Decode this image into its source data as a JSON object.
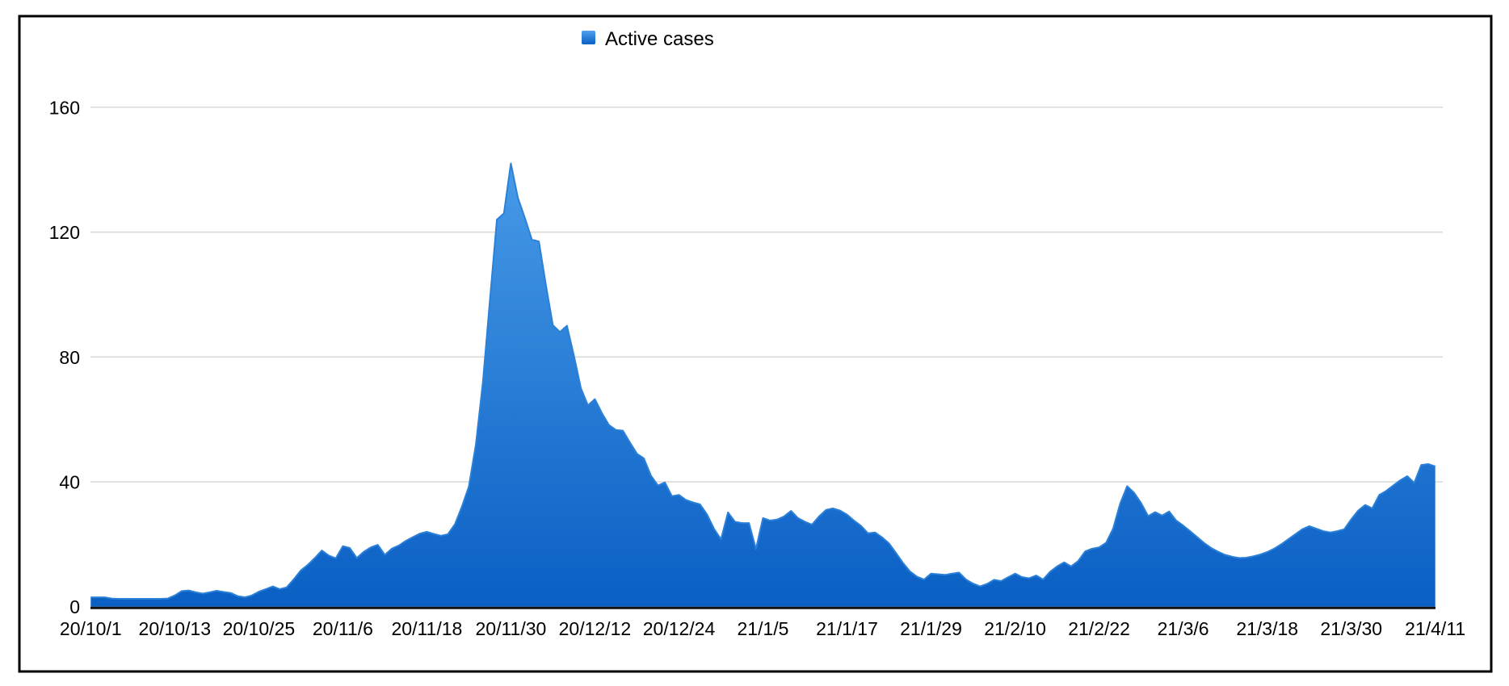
{
  "window": {
    "background": "#ffffff",
    "frame_color": "#000000"
  },
  "legend": {
    "position": "top-center"
  },
  "chart_data": {
    "type": "area",
    "title": "",
    "xlabel": "",
    "ylabel": "",
    "grid": {
      "horizontal": true,
      "color": "#d9d9d9"
    },
    "axis": {
      "line_color": "#111111",
      "text_color": "#000000"
    },
    "y": {
      "ticks": [
        0,
        40,
        80,
        120,
        160
      ],
      "lim": [
        0,
        160
      ]
    },
    "x": {
      "unit": "day",
      "total_days": 192,
      "tick_labels": [
        "20/10/1",
        "20/10/13",
        "20/10/25",
        "20/11/6",
        "20/11/18",
        "20/11/30",
        "20/12/12",
        "20/12/24",
        "21/1/5",
        "21/1/17",
        "21/1/29",
        "21/2/10",
        "21/2/22",
        "21/3/6",
        "21/3/18",
        "21/3/30",
        "21/4/11"
      ],
      "tick_day_offsets": [
        0,
        12,
        24,
        36,
        48,
        60,
        72,
        84,
        96,
        108,
        120,
        132,
        144,
        156,
        168,
        180,
        192
      ]
    },
    "series": [
      {
        "name": "Active cases",
        "color_top": "#4FA2EB",
        "color_bottom": "#0A5FC4",
        "outline_color": "#2b80d8",
        "values": [
          3,
          3,
          3,
          2.6,
          2.5,
          2.5,
          2.5,
          2.5,
          2.5,
          2.5,
          2.5,
          2.6,
          3.6,
          5,
          5.2,
          4.6,
          4.2,
          4.6,
          5.1,
          4.7,
          4.4,
          3.4,
          3,
          3.6,
          4.8,
          5.6,
          6.5,
          5.6,
          6.2,
          8.8,
          11.6,
          13.4,
          15.6,
          18,
          16.4,
          15.5,
          19.4,
          18.8,
          15.6,
          17.6,
          19,
          19.8,
          16.6,
          18.6,
          19.6,
          21.1,
          22.3,
          23.4,
          24,
          23.3,
          22.7,
          23.2,
          26.4,
          32,
          38.5,
          52,
          72,
          98,
          124,
          126,
          142,
          131,
          124.5,
          117.6,
          117,
          103,
          90.2,
          88,
          90,
          80.5,
          70,
          64.5,
          66.5,
          62,
          58.2,
          56.6,
          56.4,
          52.6,
          49,
          47.5,
          42,
          38.8,
          39.8,
          35.4,
          35.8,
          34.2,
          33.4,
          32.8,
          29.6,
          25,
          21.6,
          30.2,
          27.2,
          26.8,
          26.8,
          18.5,
          28.4,
          27.6,
          27.9,
          28.9,
          30.7,
          28.4,
          27.2,
          26.3,
          28.9,
          31,
          31.5,
          30.8,
          29.5,
          27.6,
          25.9,
          23.5,
          23.8,
          22.2,
          20.3,
          17.2,
          14,
          11.3,
          9.6,
          8.7,
          10.6,
          10.4,
          10.2,
          10.6,
          10.9,
          8.7,
          7.4,
          6.5,
          7.3,
          8.6,
          8.2,
          9.4,
          10.6,
          9.5,
          9.1,
          10,
          8.7,
          11.2,
          12.9,
          14.2,
          12.9,
          14.6,
          17.7,
          18.6,
          19,
          20.5,
          25,
          33,
          38.6,
          36.5,
          33.2,
          29,
          30.3,
          29.2,
          30.5,
          27.6,
          26,
          24.2,
          22.3,
          20.4,
          18.8,
          17.6,
          16.6,
          16,
          15.6,
          15.7,
          16.1,
          16.7,
          17.5,
          18.6,
          20,
          21.6,
          23.2,
          24.8,
          25.8,
          25,
          24.2,
          23.8,
          24.2,
          24.8,
          28,
          30.8,
          32.6,
          31.5,
          35.8,
          37.1,
          38.8,
          40.5,
          41.8,
          39.7,
          45.4,
          45.7,
          44.9
        ]
      }
    ]
  }
}
